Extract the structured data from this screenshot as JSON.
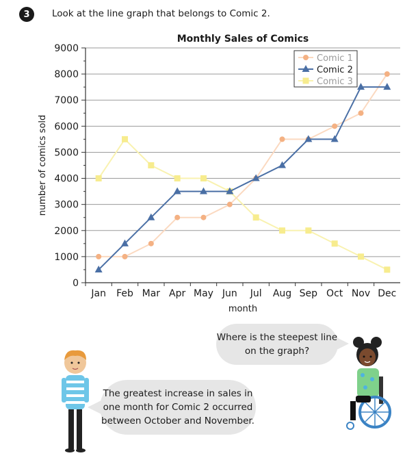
{
  "question": {
    "number": "3",
    "text": "Look at the line graph that belongs to Comic 2."
  },
  "chart_data": {
    "type": "line",
    "title": "Monthly Sales of Comics",
    "xlabel": "month",
    "ylabel": "number of comics sold",
    "categories": [
      "Jan",
      "Feb",
      "Mar",
      "Apr",
      "May",
      "Jun",
      "Jul",
      "Aug",
      "Sep",
      "Oct",
      "Nov",
      "Dec"
    ],
    "ylim": [
      0,
      9000
    ],
    "yticks": [
      0,
      1000,
      2000,
      3000,
      4000,
      5000,
      6000,
      7000,
      8000,
      9000
    ],
    "grid": true,
    "legend_position": "top-right",
    "series": [
      {
        "name": "Comic 1",
        "color": "#f4b183",
        "marker": "circle",
        "values": [
          1000,
          1000,
          1500,
          2500,
          2500,
          3000,
          4000,
          5500,
          5500,
          6000,
          6500,
          8000
        ]
      },
      {
        "name": "Comic 2",
        "color": "#4a6fa5",
        "marker": "triangle",
        "values": [
          500,
          1500,
          2500,
          3500,
          3500,
          3500,
          4000,
          4500,
          5500,
          5500,
          7500,
          7500
        ]
      },
      {
        "name": "Comic 3",
        "color": "#f7ec8e",
        "marker": "square",
        "values": [
          4000,
          5500,
          4500,
          4000,
          4000,
          3500,
          2500,
          2000,
          2000,
          1500,
          1000,
          500
        ]
      }
    ]
  },
  "speech": {
    "girl": "Where is the steepest line on the graph?",
    "boy": "The greatest increase in sales in one month for Comic 2 occurred between October and November."
  }
}
